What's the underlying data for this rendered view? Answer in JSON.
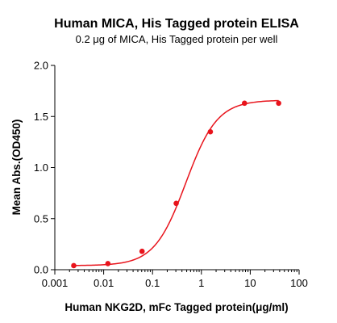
{
  "chart_data": {
    "type": "scatter",
    "title": "Human MICA, His Tagged protein ELISA",
    "subtitle": "0.2 μg of MICA, His Tagged protein per well",
    "xlabel": "Human NKG2D, mFc Tagged protein(μg/ml)",
    "ylabel": "Mean Abs.(OD450)",
    "x_scale": "log",
    "xlim": [
      0.001,
      100
    ],
    "ylim": [
      0,
      2.0
    ],
    "x_ticks": [
      "0.001",
      "0.01",
      "0.1",
      "1",
      "10",
      "100"
    ],
    "y_ticks": [
      "0.0",
      "0.5",
      "1.0",
      "1.5",
      "2.0"
    ],
    "grid": false,
    "color": "#e8141c",
    "series": [
      {
        "x": [
          0.00244,
          0.0122,
          0.061,
          0.305,
          1.526,
          7.63,
          38.15
        ],
        "y": [
          0.04,
          0.06,
          0.18,
          0.65,
          1.35,
          1.63,
          1.63
        ],
        "fit": "4PL sigmoid"
      }
    ]
  }
}
